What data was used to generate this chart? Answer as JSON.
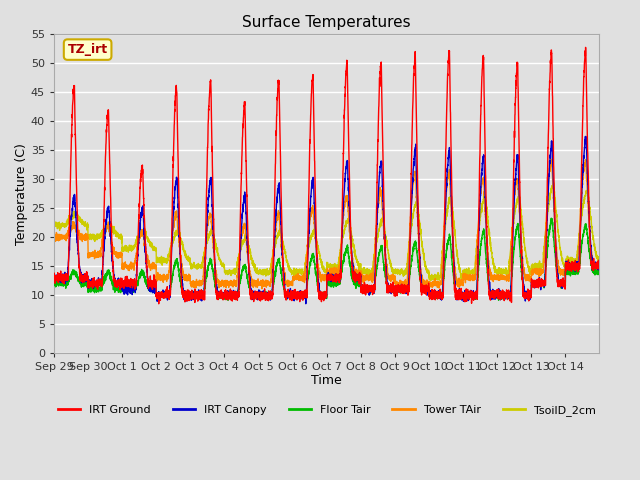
{
  "title": "Surface Temperatures",
  "xlabel": "Time",
  "ylabel": "Temperature (C)",
  "ylim": [
    0,
    55
  ],
  "yticks": [
    0,
    5,
    10,
    15,
    20,
    25,
    30,
    35,
    40,
    45,
    50,
    55
  ],
  "annotation_text": "TZ_irt",
  "annotation_color": "#aa0000",
  "annotation_bg": "#ffffcc",
  "annotation_border": "#ccaa00",
  "series_colors": {
    "IRT Ground": "#ff0000",
    "IRT Canopy": "#0000cc",
    "Floor Tair": "#00bb00",
    "Tower TAir": "#ff8800",
    "TsoilD_2cm": "#cccc00"
  },
  "bg_color": "#e0e0e0",
  "grid_color": "#ffffff",
  "x_labels": [
    "Sep 29",
    "Sep 30",
    "Oct 1",
    "Oct 2",
    "Oct 3",
    "Oct 4",
    "Oct 5",
    "Oct 6",
    "Oct 7",
    "Oct 8",
    "Oct 9",
    "Oct 10",
    "Oct 11",
    "Oct 12",
    "Oct 13",
    "Oct 14"
  ],
  "n_days": 16,
  "figsize": [
    6.4,
    4.8
  ],
  "dpi": 100
}
